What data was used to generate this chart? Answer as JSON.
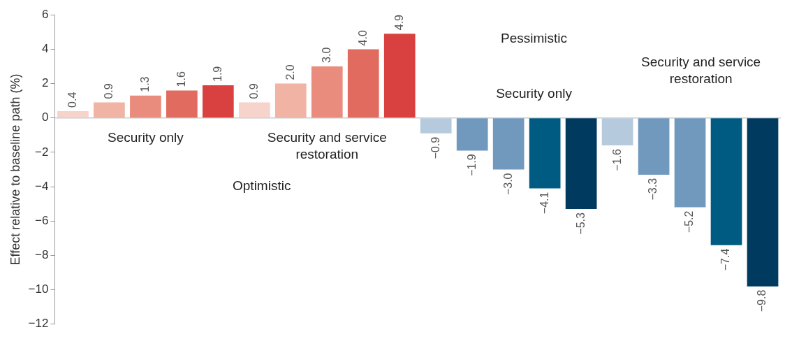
{
  "chart_data": {
    "type": "bar",
    "ylabel": "Effect relative to baseline path (%)",
    "categories": [
      null,
      null,
      null,
      null,
      null,
      null,
      null,
      null,
      null,
      null,
      null,
      null,
      null,
      null,
      null,
      null,
      null,
      null,
      null,
      null
    ],
    "values": [
      0.4,
      0.9,
      1.3,
      1.6,
      1.9,
      0.9,
      2.0,
      3.0,
      4.0,
      4.9,
      -0.9,
      -1.9,
      -3.0,
      -4.1,
      -5.3,
      -1.6,
      -3.3,
      -5.2,
      -7.4,
      -9.8
    ],
    "value_labels": [
      "0.4",
      "0.9",
      "1.3",
      "1.6",
      "1.9",
      "0.9",
      "2.0",
      "3.0",
      "4.0",
      "4.9",
      "−0.9",
      "−1.9",
      "−3.0",
      "−4.1",
      "−5.3",
      "−1.6",
      "−3.3",
      "−5.2",
      "−7.4",
      "−9.8"
    ],
    "colors": [
      "#f6d3cb",
      "#f0b3a4",
      "#e98c7e",
      "#e16b5e",
      "#d94141",
      "#f6d3cb",
      "#f0b3a4",
      "#e98c7e",
      "#e16b5e",
      "#d94141",
      "#b5cadd",
      "#7199bd",
      "#7199bd",
      "#005b82",
      "#003a5e",
      "#b5cadd",
      "#7199bd",
      "#7199bd",
      "#005b82",
      "#003a5e"
    ],
    "ylim": [
      -12,
      6
    ],
    "yticks": [
      {
        "value": -12,
        "label": "−12"
      },
      {
        "value": -10,
        "label": "−10"
      },
      {
        "value": -8,
        "label": "−8"
      },
      {
        "value": -6,
        "label": "−6"
      },
      {
        "value": -4,
        "label": "−4"
      },
      {
        "value": -2,
        "label": "−2"
      },
      0,
      2,
      4,
      6
    ],
    "tick_labels": "y",
    "grid": false,
    "legend": false,
    "ref_lines": [
      {
        "axis": "y",
        "value": 0,
        "color": "#cccccc"
      }
    ],
    "annotations": [
      "Security only",
      "Security and service restoration",
      "Optimistic",
      "Pessimistic",
      "Security only",
      "Security and service restoration"
    ]
  }
}
